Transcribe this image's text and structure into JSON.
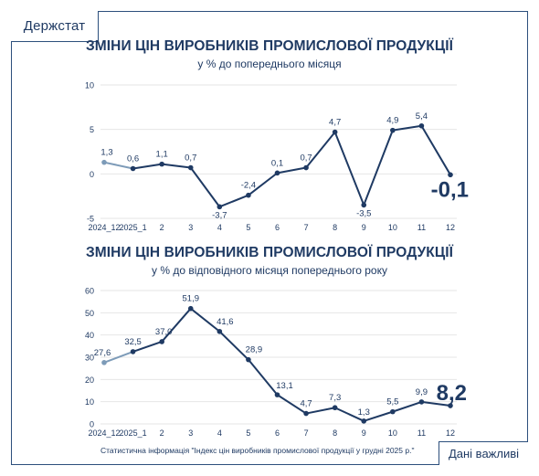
{
  "brand": "Держстат",
  "footnote": "Статистична інформація \"Індекс цін виробників промислової продукції у грудні 2025 р.\"",
  "button_label": "Дані важливі",
  "colors": {
    "line": "#1f3a63",
    "prev_year": "#7d9bb8",
    "grid": "#e6e6e6",
    "text": "#1f3a63"
  },
  "chart_data": [
    {
      "type": "line",
      "title": "ЗМІНИ ЦІН ВИРОБНИКІВ ПРОМИСЛОВОЇ ПРОДУКЦІЇ",
      "subtitle": "у % до попереднього місяця",
      "categories": [
        "2024_12",
        "2025_1",
        "2",
        "3",
        "4",
        "5",
        "6",
        "7",
        "8",
        "9",
        "10",
        "11",
        "12"
      ],
      "values": [
        1.3,
        0.6,
        1.1,
        0.7,
        -3.7,
        -2.4,
        0.1,
        0.7,
        4.7,
        -3.5,
        4.9,
        5.4,
        -0.1
      ],
      "labels": [
        "1,3",
        "0,6",
        "1,1",
        "0,7",
        "-3,7",
        "-2,4",
        "0,1",
        "0,7",
        "4,7",
        "-3,5",
        "4,9",
        "5,4",
        "-0,1"
      ],
      "yticks": [
        -5,
        0,
        5,
        10
      ],
      "ylim": [
        -5,
        10
      ],
      "grid": "horizontal",
      "highlight_last": true
    },
    {
      "type": "line",
      "title": "ЗМІНИ ЦІН ВИРОБНИКІВ ПРОМИСЛОВОЇ ПРОДУКЦІЇ",
      "subtitle": "у % до відповідного місяця попереднього року",
      "categories": [
        "2024_12",
        "2025_1",
        "2",
        "3",
        "4",
        "5",
        "6",
        "7",
        "8",
        "9",
        "10",
        "11",
        "12"
      ],
      "values": [
        27.6,
        32.5,
        37.0,
        51.9,
        41.6,
        28.9,
        13.1,
        4.7,
        7.3,
        1.3,
        5.5,
        9.9,
        8.2
      ],
      "labels": [
        "27,6",
        "32,5",
        "37,0",
        "51,9",
        "41,6",
        "28,9",
        "13,1",
        "4,7",
        "7,3",
        "1,3",
        "5,5",
        "9,9",
        "8,2"
      ],
      "yticks": [
        0,
        10,
        20,
        30,
        40,
        50,
        60
      ],
      "ylim": [
        0,
        60
      ],
      "grid": "horizontal",
      "highlight_last": true
    }
  ]
}
